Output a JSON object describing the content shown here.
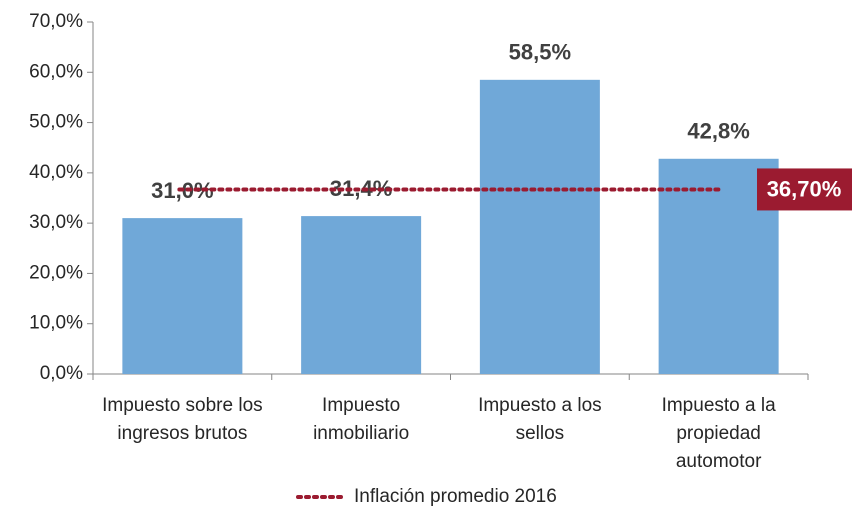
{
  "chart_data": {
    "type": "bar",
    "categories": [
      "Impuesto sobre los ingresos brutos",
      "Impuesto inmobiliario",
      "Impuesto a los sellos",
      "Impuesto a la propiedad automotor"
    ],
    "values": [
      31.0,
      31.4,
      58.5,
      42.8
    ],
    "value_labels": [
      "31,0%",
      "31,4%",
      "58,5%",
      "42,8%"
    ],
    "color": "#70a8d8",
    "ylim": [
      0,
      70
    ],
    "yticks": [
      {
        "value": 0,
        "label": "0,0%"
      },
      {
        "value": 10,
        "label": "10,0%"
      },
      {
        "value": 20,
        "label": "20,0%"
      },
      {
        "value": 30,
        "label": "30,0%"
      },
      {
        "value": 40,
        "label": "40,0%"
      },
      {
        "value": 50,
        "label": "50,0%"
      },
      {
        "value": 60,
        "label": "60,0%"
      },
      {
        "value": 70,
        "label": "70,0%"
      }
    ],
    "reference_line": {
      "name": "Inflación promedio 2016",
      "value": 36.7,
      "label": "36,70%",
      "color": "#9b1b30"
    }
  }
}
